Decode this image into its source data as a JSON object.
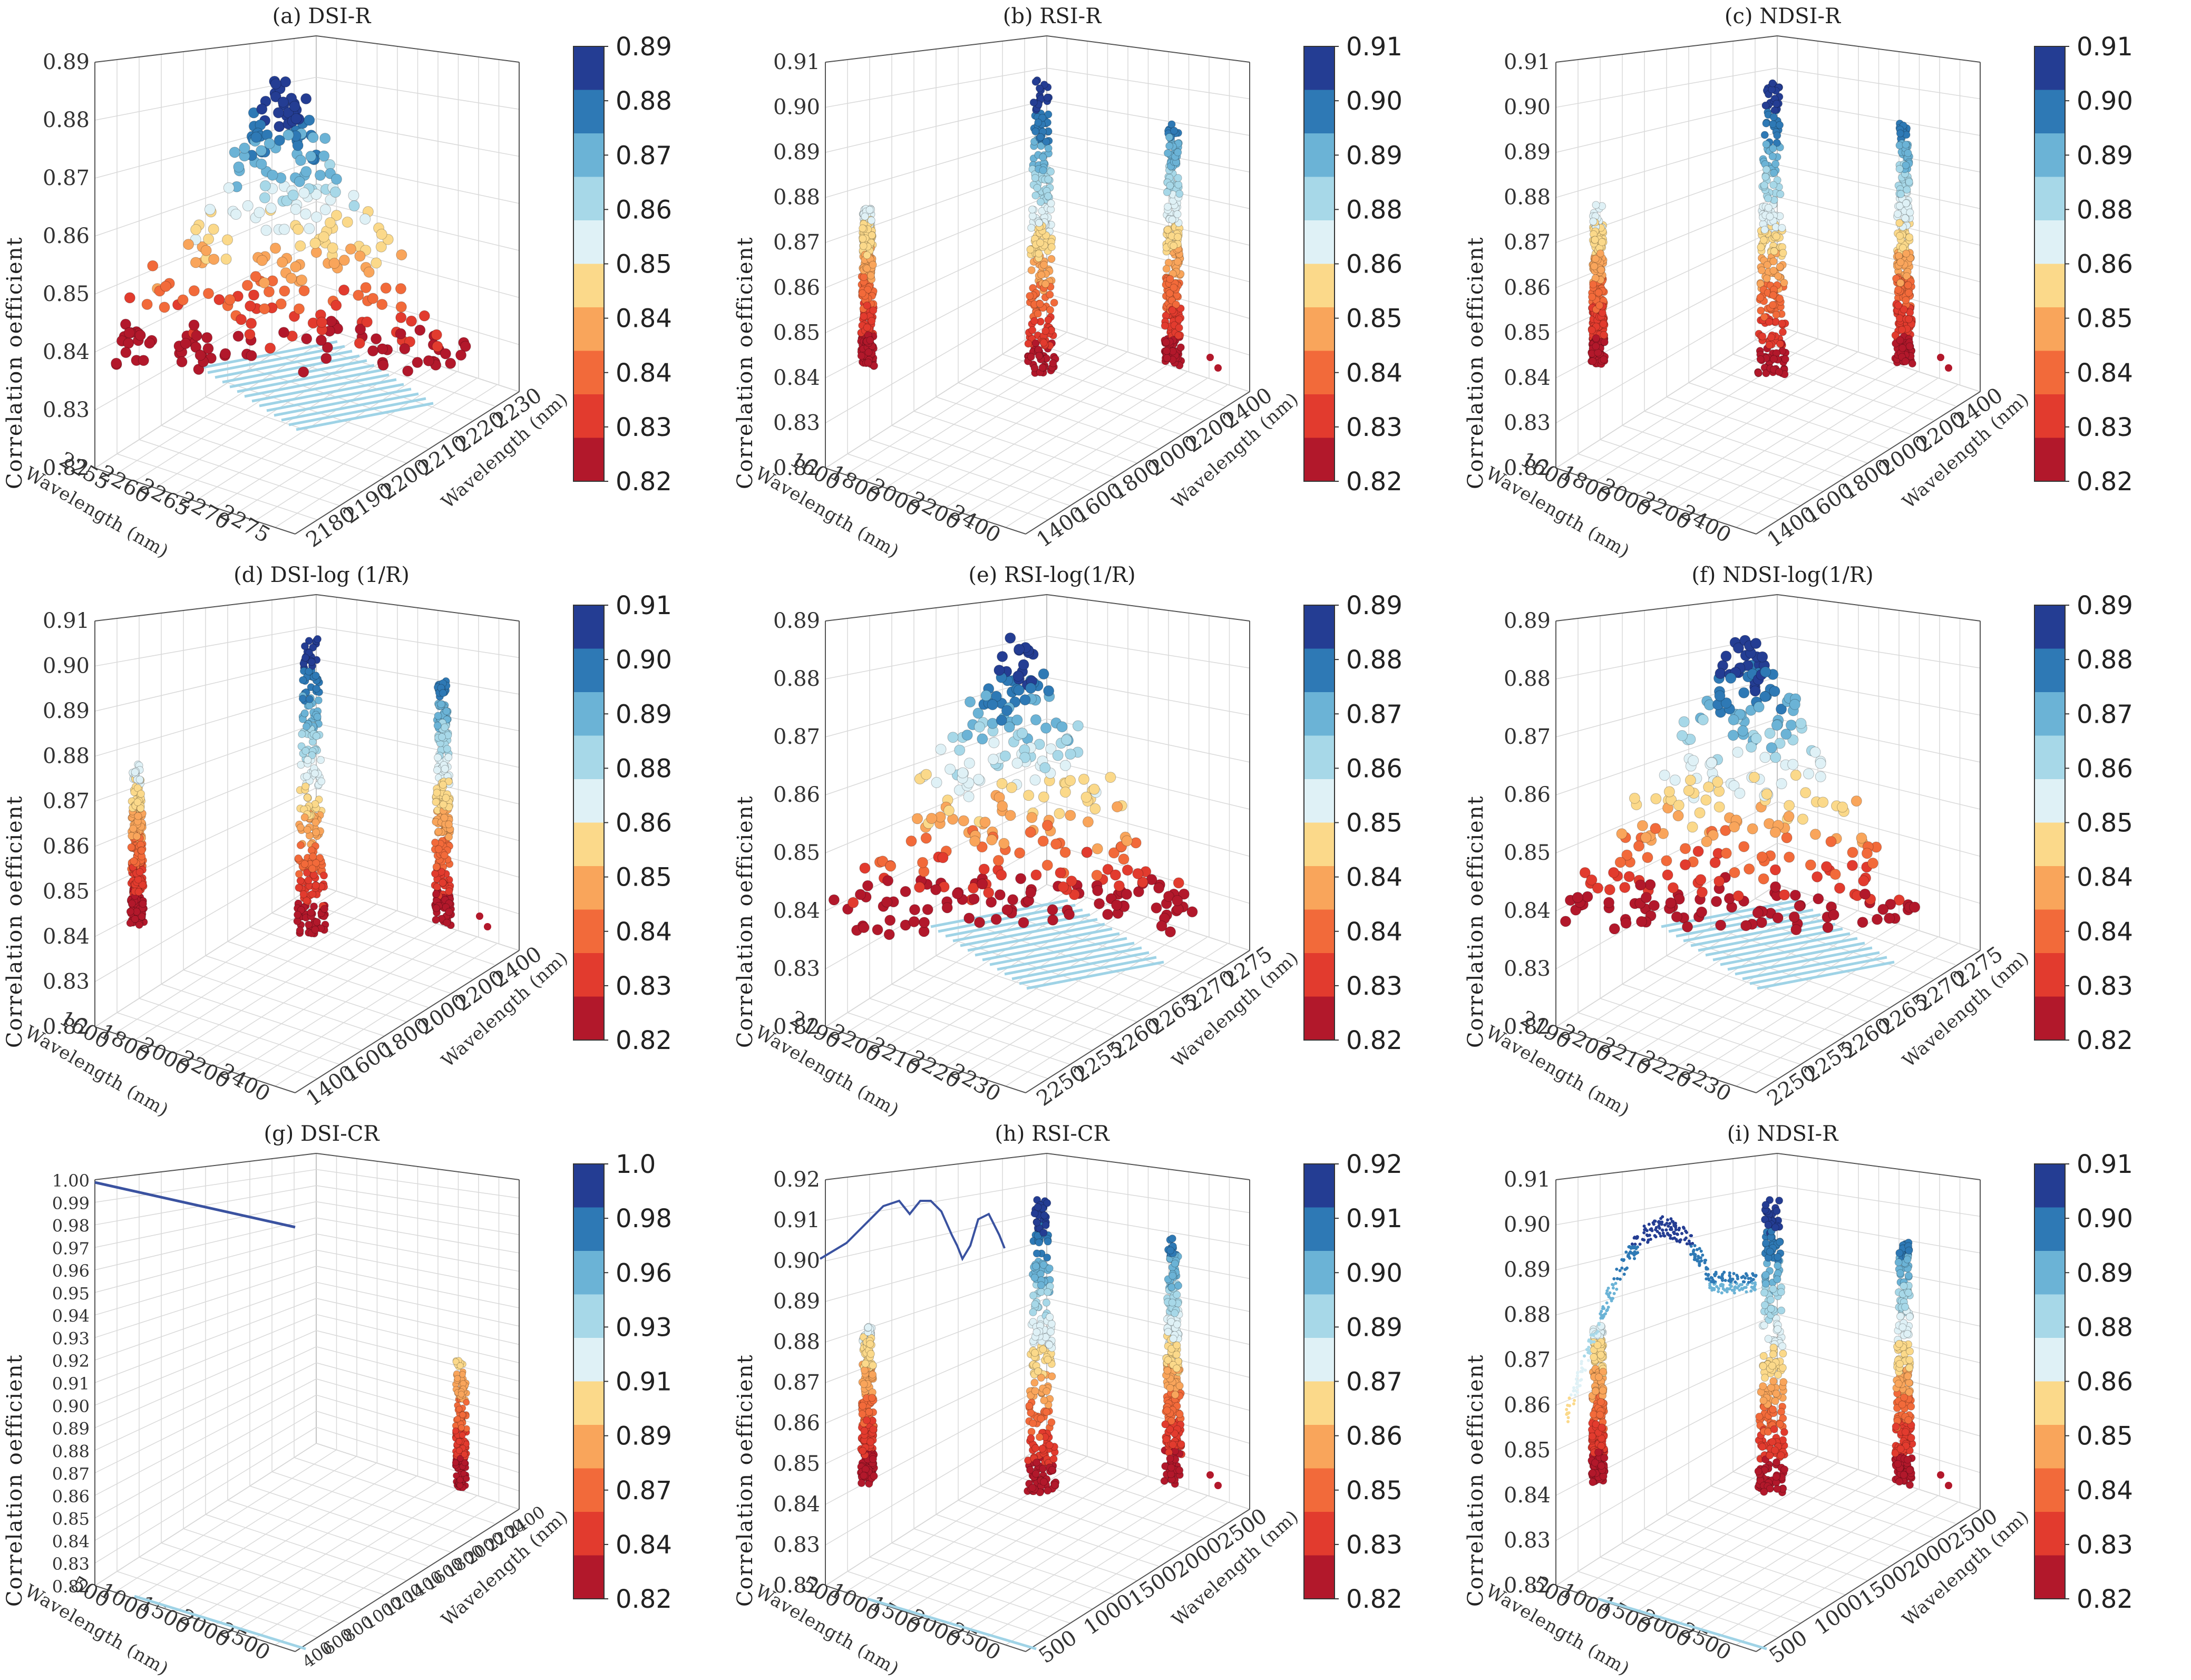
{
  "palette": [
    "#b2182b",
    "#e23b2e",
    "#f26a3a",
    "#f9a55b",
    "#fbd98a",
    "#dff1f6",
    "#a7d8e8",
    "#6bb3d6",
    "#2e79b5",
    "#243d93"
  ],
  "y_axis_label": "Correlation oefficient",
  "x_axis_label": "Wavelength (nm)",
  "z_axis_label": "Wavelength (nm)",
  "chart_data": [
    {
      "id": "a",
      "type": "scatter3d",
      "title": "(a) DSI-R",
      "shape": "peak",
      "zlim": [
        0.82,
        0.89
      ],
      "z_ticks": [
        "0.82",
        "0.83",
        "0.84",
        "0.85",
        "0.86",
        "0.87",
        "0.88",
        "0.89"
      ],
      "x_ticks": [
        "2255",
        "2260",
        "2265",
        "2270",
        "2275"
      ],
      "y_ticks": [
        "2180",
        "2190",
        "2200",
        "2210",
        "2220",
        "2230"
      ],
      "colorbar_ticks": [
        "0.82",
        "0.83",
        "0.84",
        "0.84",
        "0.85",
        "0.86",
        "0.87",
        "0.88",
        "0.89"
      ]
    },
    {
      "id": "b",
      "type": "scatter3d",
      "title": "(b) RSI-R",
      "shape": "columns",
      "zlim": [
        0.82,
        0.91
      ],
      "z_ticks": [
        "0.82",
        "0.83",
        "0.84",
        "0.85",
        "0.86",
        "0.87",
        "0.88",
        "0.89",
        "0.90",
        "0.91"
      ],
      "x_ticks": [
        "1600",
        "1800",
        "2000",
        "2200",
        "2400"
      ],
      "y_ticks": [
        "1400",
        "1600",
        "1800",
        "2000",
        "2200",
        "2400"
      ],
      "colorbar_ticks": [
        "0.82",
        "0.83",
        "0.84",
        "0.85",
        "0.86",
        "0.88",
        "0.89",
        "0.90",
        "0.91"
      ]
    },
    {
      "id": "c",
      "type": "scatter3d",
      "title": "(c) NDSI-R",
      "shape": "columns",
      "zlim": [
        0.82,
        0.91
      ],
      "z_ticks": [
        "0.82",
        "0.83",
        "0.84",
        "0.85",
        "0.86",
        "0.87",
        "0.88",
        "0.89",
        "0.90",
        "0.91"
      ],
      "x_ticks": [
        "1600",
        "1800",
        "2000",
        "2200",
        "2400"
      ],
      "y_ticks": [
        "1400",
        "1600",
        "1800",
        "2000",
        "2200",
        "2400"
      ],
      "colorbar_ticks": [
        "0.82",
        "0.83",
        "0.84",
        "0.85",
        "0.86",
        "0.88",
        "0.89",
        "0.90",
        "0.91"
      ]
    },
    {
      "id": "d",
      "type": "scatter3d",
      "title": "(d) DSI-log (1/R)",
      "shape": "columns",
      "zlim": [
        0.82,
        0.91
      ],
      "z_ticks": [
        "0.82",
        "0.83",
        "0.84",
        "0.85",
        "0.86",
        "0.87",
        "0.88",
        "0.89",
        "0.90",
        "0.91"
      ],
      "x_ticks": [
        "1600",
        "1800",
        "2000",
        "2200",
        "2400"
      ],
      "y_ticks": [
        "1400",
        "1600",
        "1800",
        "2000",
        "2200",
        "2400"
      ],
      "colorbar_ticks": [
        "0.82",
        "0.83",
        "0.84",
        "0.85",
        "0.86",
        "0.88",
        "0.89",
        "0.90",
        "0.91"
      ]
    },
    {
      "id": "e",
      "type": "scatter3d",
      "title": "(e) RSI-log(1/R)",
      "shape": "peak",
      "zlim": [
        0.82,
        0.89
      ],
      "z_ticks": [
        "0.82",
        "0.83",
        "0.84",
        "0.85",
        "0.86",
        "0.87",
        "0.88",
        "0.89"
      ],
      "x_ticks": [
        "2190",
        "2200",
        "2210",
        "2220",
        "2230"
      ],
      "y_ticks": [
        "2250",
        "2255",
        "2260",
        "2265",
        "2270",
        "2275"
      ],
      "colorbar_ticks": [
        "0.82",
        "0.83",
        "0.84",
        "0.84",
        "0.85",
        "0.86",
        "0.87",
        "0.88",
        "0.89"
      ]
    },
    {
      "id": "f",
      "type": "scatter3d",
      "title": "(f) NDSI-log(1/R)",
      "shape": "peak",
      "zlim": [
        0.82,
        0.89
      ],
      "z_ticks": [
        "0.82",
        "0.83",
        "0.84",
        "0.85",
        "0.86",
        "0.87",
        "0.88",
        "0.89"
      ],
      "x_ticks": [
        "2190",
        "2200",
        "2210",
        "2220",
        "2230"
      ],
      "y_ticks": [
        "2250",
        "2255",
        "2260",
        "2265",
        "2270",
        "2275"
      ],
      "colorbar_ticks": [
        "0.82",
        "0.83",
        "0.84",
        "0.84",
        "0.85",
        "0.86",
        "0.87",
        "0.88",
        "0.89"
      ]
    },
    {
      "id": "g",
      "type": "scatter3d",
      "title": "(g) DSI-CR",
      "shape": "line_flat",
      "zlim": [
        0.82,
        1.0
      ],
      "z_ticks": [
        "0.82",
        "0.83",
        "0.84",
        "0.85",
        "0.86",
        "0.87",
        "0.88",
        "0.89",
        "0.90",
        "0.91",
        "0.92",
        "0.93",
        "0.94",
        "0.95",
        "0.96",
        "0.97",
        "0.98",
        "0.99",
        "1.00"
      ],
      "x_ticks": [
        "500",
        "1000",
        "1500",
        "2000",
        "2500"
      ],
      "y_ticks": [
        "400",
        "600",
        "800",
        "1000",
        "1200",
        "1400",
        "1600",
        "1800",
        "2000",
        "2200",
        "2400"
      ],
      "colorbar_ticks": [
        "0.82",
        "0.84",
        "0.87",
        "0.89",
        "0.91",
        "0.93",
        "0.96",
        "0.98",
        "1.0"
      ]
    },
    {
      "id": "h",
      "type": "scatter3d",
      "title": "(h) RSI-CR",
      "shape": "line_curve",
      "zlim": [
        0.82,
        0.92
      ],
      "z_ticks": [
        "0.82",
        "0.83",
        "0.84",
        "0.85",
        "0.86",
        "0.87",
        "0.88",
        "0.89",
        "0.90",
        "0.91",
        "0.92"
      ],
      "x_ticks": [
        "500",
        "1000",
        "1500",
        "2000",
        "2500"
      ],
      "y_ticks": [
        "500",
        "1000",
        "1500",
        "2000",
        "2500"
      ],
      "colorbar_ticks": [
        "0.82",
        "0.83",
        "0.85",
        "0.86",
        "0.87",
        "0.89",
        "0.90",
        "0.91",
        "0.92"
      ]
    },
    {
      "id": "i",
      "type": "scatter3d",
      "title": "(i) NDSI-R",
      "shape": "scatter_curve",
      "zlim": [
        0.82,
        0.91
      ],
      "z_ticks": [
        "0.82",
        "0.83",
        "0.84",
        "0.85",
        "0.86",
        "0.87",
        "0.88",
        "0.89",
        "0.90",
        "0.91"
      ],
      "x_ticks": [
        "500",
        "1000",
        "1500",
        "2000",
        "2500"
      ],
      "y_ticks": [
        "500",
        "1000",
        "1500",
        "2000",
        "2500"
      ],
      "colorbar_ticks": [
        "0.82",
        "0.83",
        "0.84",
        "0.85",
        "0.86",
        "0.88",
        "0.89",
        "0.90",
        "0.91"
      ]
    }
  ]
}
